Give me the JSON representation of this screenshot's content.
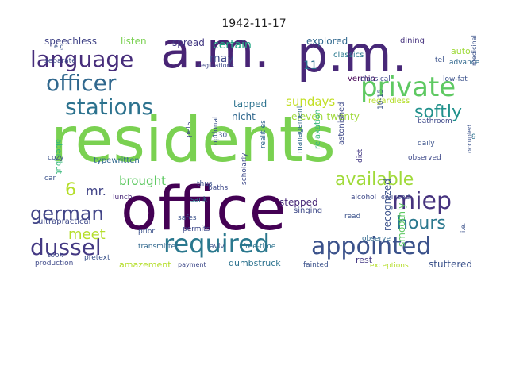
{
  "title": "1942-11-17",
  "palette": {
    "dark_purple": "#440154",
    "indigo": "#3b528b",
    "blue": "#31688e",
    "teal": "#21918c",
    "green_teal": "#35b779",
    "green": "#5ec962",
    "lime": "#90d743",
    "yellow": "#b5de2b",
    "pale": "#c2df23"
  },
  "words": [
    {
      "text": "residents",
      "color": "#7ad151"
    },
    {
      "text": "office",
      "color": "#440154"
    },
    {
      "text": "a.m.",
      "color": "#482475"
    },
    {
      "text": "p.m.",
      "color": "#482878"
    },
    {
      "text": "required",
      "color": "#2a788e"
    },
    {
      "text": "appointed",
      "color": "#3b528b"
    },
    {
      "text": "private",
      "color": "#5ec962"
    },
    {
      "text": "language",
      "color": "#472d7b"
    },
    {
      "text": "officer",
      "color": "#31688e"
    },
    {
      "text": "stations",
      "color": "#2c728e"
    },
    {
      "text": "dussel",
      "color": "#443983"
    },
    {
      "text": "german",
      "color": "#414487"
    },
    {
      "text": "miep",
      "color": "#46337e"
    },
    {
      "text": "forbidden",
      "color": "#6ece58"
    },
    {
      "text": "available",
      "color": "#a0da39"
    },
    {
      "text": "softly",
      "color": "#21918c"
    },
    {
      "text": "hours",
      "color": "#2a788e"
    },
    {
      "text": "meet",
      "color": "#b5de2b"
    },
    {
      "text": "6",
      "color": "#b5de2b"
    },
    {
      "text": "mr.",
      "color": "#414487"
    },
    {
      "text": "brought",
      "color": "#5ec962"
    },
    {
      "text": "sundays",
      "color": "#c2df23"
    },
    {
      "text": "certain",
      "color": "#22a884"
    },
    {
      "text": "may",
      "color": "#3e4989"
    },
    {
      "text": "11",
      "color": "#2c728e"
    },
    {
      "text": "explored",
      "color": "#31688e"
    },
    {
      "text": "spread",
      "color": "#443983"
    },
    {
      "text": "listen",
      "color": "#7ad151"
    },
    {
      "text": "speechless",
      "color": "#414487"
    },
    {
      "text": "tapped",
      "color": "#2c728e"
    },
    {
      "text": "nicht",
      "color": "#31688e"
    },
    {
      "text": "eleven-twenty",
      "color": "#a0da39"
    },
    {
      "text": "stepped",
      "color": "#482878"
    },
    {
      "text": "recognized",
      "color": "#3b528b"
    },
    {
      "text": "smoothly",
      "color": "#5ec962"
    },
    {
      "text": "stuttered",
      "color": "#3b528b"
    },
    {
      "text": "dumbstruck",
      "color": "#2c728e"
    },
    {
      "text": "amazement",
      "color": "#b5de2b"
    },
    {
      "text": "rest",
      "color": "#443983"
    },
    {
      "text": "auto",
      "color": "#9fda3a"
    },
    {
      "text": "classics",
      "color": "#2a788e"
    },
    {
      "text": "typewritten",
      "color": "#31688e"
    },
    {
      "text": "lunch",
      "color": "#482878"
    },
    {
      "text": "aber_but",
      "color": "#35b779"
    },
    {
      "text": "ultrapractical",
      "color": "#3e4989"
    },
    {
      "text": "transmitted",
      "color": "#31688e"
    },
    {
      "text": "aviv",
      "color": "#3b528b"
    },
    {
      "text": "free-time",
      "color": "#2c728e"
    },
    {
      "text": "production",
      "color": "#3e4989"
    },
    {
      "text": "payment",
      "color": "#3e4989"
    },
    {
      "text": "exceptions",
      "color": "#b5de2b"
    },
    {
      "text": "fainted",
      "color": "#3b528b"
    },
    {
      "text": "dining",
      "color": "#46337e"
    },
    {
      "text": "advance",
      "color": "#31688e"
    },
    {
      "text": "tel",
      "color": "#3b528b"
    },
    {
      "text": "vermin",
      "color": "#440154"
    },
    {
      "text": "classical",
      "color": "#3e4989"
    },
    {
      "text": "low-fat",
      "color": "#3b528b"
    },
    {
      "text": "astonished",
      "color": "#3e4989"
    },
    {
      "text": "management",
      "color": "#31688e"
    },
    {
      "text": "regardless",
      "color": "#b5de2b"
    },
    {
      "text": "bathroom",
      "color": "#3e4989"
    },
    {
      "text": "daily",
      "color": "#3b528b"
    },
    {
      "text": "observed",
      "color": "#3e4989"
    },
    {
      "text": "diet",
      "color": "#443983"
    },
    {
      "text": "alcohol",
      "color": "#3e4989"
    },
    {
      "text": "civilized",
      "color": "#3e4989"
    },
    {
      "text": "singing",
      "color": "#3e4989"
    },
    {
      "text": "read",
      "color": "#3b528b"
    },
    {
      "text": "observe",
      "color": "#31688e"
    },
    {
      "text": "prior",
      "color": "#3b528b"
    },
    {
      "text": "took",
      "color": "#3e4989"
    },
    {
      "text": "safes",
      "color": "#3b528b"
    },
    {
      "text": "permits",
      "color": "#3e4989"
    },
    {
      "text": "sank",
      "color": "#2c728e"
    },
    {
      "text": "thus",
      "color": "#3b528b"
    },
    {
      "text": "baths",
      "color": "#3e4989"
    },
    {
      "text": "cozy",
      "color": "#3b528b"
    },
    {
      "text": "car",
      "color": "#3b528b"
    },
    {
      "text": "separate",
      "color": "#3e4989"
    },
    {
      "text": "optional",
      "color": "#3b528b"
    },
    {
      "text": "scholarly",
      "color": "#3e4989"
    },
    {
      "text": "realities",
      "color": "#31688e"
    },
    {
      "text": "relaxation",
      "color": "#35b779"
    },
    {
      "text": "10-15",
      "color": "#3b528b"
    },
    {
      "text": "pretext",
      "color": "#3b528b"
    },
    {
      "text": "medicinal",
      "color": "#3b528b"
    },
    {
      "text": "regulations",
      "color": "#3e4989"
    },
    {
      "text": "e.g.",
      "color": "#3b528b"
    },
    {
      "text": "i.e.",
      "color": "#3b528b"
    },
    {
      "text": "7:30",
      "color": "#3b528b"
    },
    {
      "text": "pets",
      "color": "#3e4989"
    },
    {
      "text": "occupied",
      "color": "#3b528b"
    },
    {
      "text": "9",
      "color": "#2c728e"
    }
  ]
}
